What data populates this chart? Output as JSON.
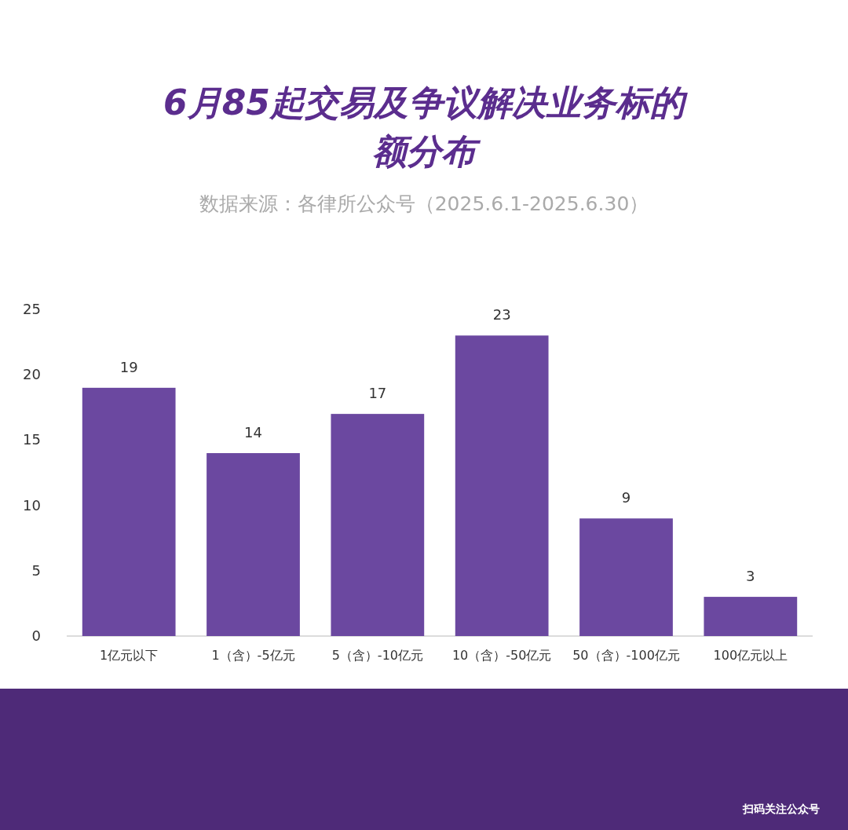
{
  "chart_data": {
    "type": "bar",
    "title": "6月85起交易及争议解决业务标的额分布",
    "subtitle": "数据来源：各律所公众号（2025.6.1-2025.6.30）",
    "categories": [
      "1亿元以下",
      "1（含）-5亿元",
      "5（含）-10亿元",
      "10（含）-50亿元",
      "50（含）-100亿元",
      "100亿元以上"
    ],
    "values": [
      19,
      14,
      17,
      23,
      9,
      3
    ],
    "color": "#6b48a0",
    "ylim": [
      0,
      25
    ],
    "yticks": [
      0,
      5,
      10,
      15,
      20,
      25
    ],
    "data_labels": true,
    "grid": false,
    "annotations": [
      "扫码关注公众号"
    ]
  }
}
